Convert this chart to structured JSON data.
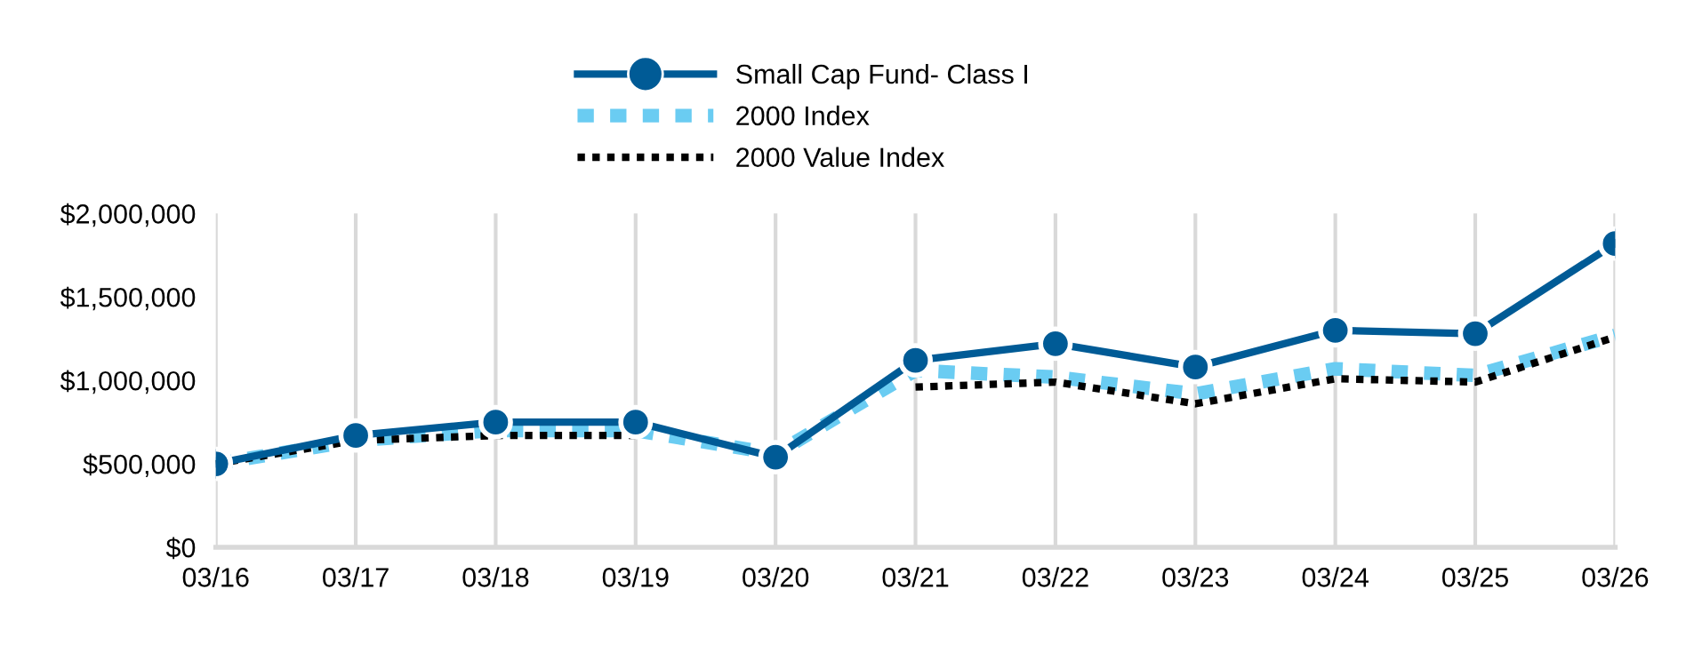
{
  "chart_data": {
    "type": "line",
    "categories": [
      "03/16",
      "03/17",
      "03/18",
      "03/19",
      "03/20",
      "03/21",
      "03/22",
      "03/23",
      "03/24",
      "03/25",
      "03/26"
    ],
    "series": [
      {
        "name": "Small Cap Fund- Class I",
        "color": "#005b96",
        "marker": "circle",
        "line_style": "solid",
        "values": [
          500000,
          670000,
          750000,
          750000,
          540000,
          1120000,
          1220000,
          1080000,
          1300000,
          1280000,
          1820000
        ]
      },
      {
        "name": "2000 Index",
        "color": "#6accf2",
        "marker": "none",
        "line_style": "dashed",
        "values": [
          500000,
          640000,
          700000,
          700000,
          560000,
          1060000,
          1020000,
          920000,
          1070000,
          1030000,
          1270000
        ]
      },
      {
        "name": "2000 Value Index",
        "color": "#000000",
        "marker": "none",
        "line_style": "dotted",
        "values": [
          500000,
          640000,
          670000,
          670000,
          null,
          960000,
          990000,
          860000,
          1010000,
          990000,
          1260000
        ]
      }
    ],
    "ylim": [
      0,
      2000000
    ],
    "yticks": [
      {
        "value": 0,
        "label": "$0"
      },
      {
        "value": 500000,
        "label": "$500,000"
      },
      {
        "value": 1000000,
        "label": "$1,000,000"
      },
      {
        "value": 1500000,
        "label": "$1,500,000"
      },
      {
        "value": 2000000,
        "label": "$2,000,000"
      }
    ],
    "grid": "x",
    "legend": "top"
  }
}
